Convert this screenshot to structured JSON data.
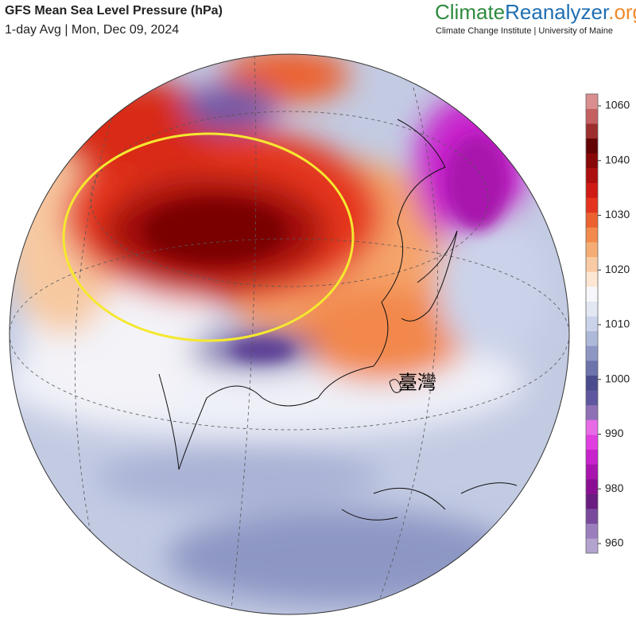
{
  "header": {
    "title": "GFS Mean Sea Level Pressure (hPa)",
    "subtitle": "1-day Avg | Mon, Dec 09, 2024"
  },
  "brand": {
    "name_parts": [
      "Climate",
      "Reanalyzer",
      ".org"
    ],
    "name_colors": [
      "#2e8b3e",
      "#1f6fb2",
      "#f08a2a"
    ],
    "tagline": "Climate Change Institute | University of Maine"
  },
  "map": {
    "label": "臺灣"
  },
  "colorbar": {
    "ticks": [
      960,
      980,
      990,
      1000,
      1010,
      1020,
      1030,
      1040,
      1060
    ],
    "colors": [
      "#b3a3cf",
      "#9b7fbd",
      "#7a4a9c",
      "#6a1c80",
      "#8a0f92",
      "#a814ad",
      "#c722cc",
      "#e03ee0",
      "#e86ae6",
      "#8f6fb6",
      "#5f58a0",
      "#4a4c8c",
      "#6d73ab",
      "#8e97c4",
      "#aeb8d9",
      "#cbd3ea",
      "#e2e7f3",
      "#f7f7fb",
      "#fde6d2",
      "#f9cba4",
      "#f6ad74",
      "#f28a4c",
      "#ec612f",
      "#e5341d",
      "#d01a14",
      "#ad0e0e",
      "#880707",
      "#630303",
      "#9c2e2e",
      "#c46060",
      "#d98f8f"
    ]
  }
}
